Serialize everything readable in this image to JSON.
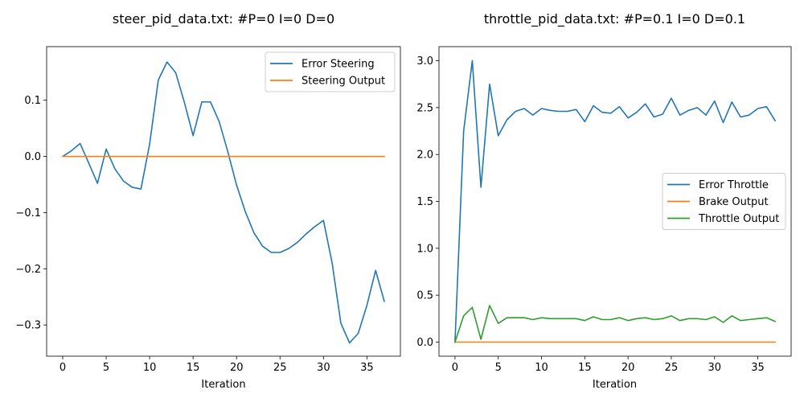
{
  "chart_data": [
    {
      "type": "line",
      "title": "steer_pid_data.txt: #P=0 I=0 D=0",
      "xlabel": "Iteration",
      "ylabel": "",
      "xlim": [
        -1.85,
        38.85
      ],
      "ylim": [
        -0.3556,
        0.1954
      ],
      "xticks": [
        0,
        5,
        10,
        15,
        20,
        25,
        30,
        35
      ],
      "yticks": [
        -0.3,
        -0.2,
        -0.1,
        0.0,
        0.1
      ],
      "ytick_labels": [
        "−0.3",
        "−0.2",
        "−0.1",
        "0.0",
        "0.1"
      ],
      "legend_position": "top-right",
      "series": [
        {
          "name": "Error Steering",
          "color": "#1f77b4",
          "x": [
            0,
            1,
            2,
            3,
            4,
            5,
            6,
            7,
            8,
            9,
            10,
            11,
            12,
            13,
            14,
            15,
            16,
            17,
            18,
            19,
            20,
            21,
            22,
            23,
            24,
            25,
            26,
            27,
            28,
            29,
            30,
            31,
            32,
            33,
            34,
            35,
            36,
            37
          ],
          "y": [
            0.0,
            0.01,
            0.023,
            -0.012,
            -0.048,
            0.013,
            -0.022,
            -0.044,
            -0.055,
            -0.058,
            0.022,
            0.136,
            0.168,
            0.149,
            0.096,
            0.037,
            0.097,
            0.097,
            0.062,
            0.008,
            -0.051,
            -0.098,
            -0.136,
            -0.16,
            -0.171,
            -0.171,
            -0.164,
            -0.153,
            -0.138,
            -0.125,
            -0.114,
            -0.19,
            -0.297,
            -0.332,
            -0.315,
            -0.265,
            -0.203,
            -0.258
          ]
        },
        {
          "name": "Steering Output",
          "color": "#ff7f0e",
          "x": [
            0,
            1,
            2,
            3,
            4,
            5,
            6,
            7,
            8,
            9,
            10,
            11,
            12,
            13,
            14,
            15,
            16,
            17,
            18,
            19,
            20,
            21,
            22,
            23,
            24,
            25,
            26,
            27,
            28,
            29,
            30,
            31,
            32,
            33,
            34,
            35,
            36,
            37
          ],
          "y": [
            0,
            0,
            0,
            0,
            0,
            0,
            0,
            0,
            0,
            0,
            0,
            0,
            0,
            0,
            0,
            0,
            0,
            0,
            0,
            0,
            0,
            0,
            0,
            0,
            0,
            0,
            0,
            0,
            0,
            0,
            0,
            0,
            0,
            0,
            0,
            0,
            0,
            0
          ]
        }
      ]
    },
    {
      "type": "line",
      "title": "throttle_pid_data.txt: #P=0.1 I=0 D=0.1",
      "xlabel": "Iteration",
      "ylabel": "",
      "xlim": [
        -1.85,
        38.85
      ],
      "ylim": [
        -0.15,
        3.15
      ],
      "xticks": [
        0,
        5,
        10,
        15,
        20,
        25,
        30,
        35
      ],
      "yticks": [
        0.0,
        0.5,
        1.0,
        1.5,
        2.0,
        2.5,
        3.0
      ],
      "ytick_labels": [
        "0.0",
        "0.5",
        "1.0",
        "1.5",
        "2.0",
        "2.5",
        "3.0"
      ],
      "legend_position": "center-right",
      "series": [
        {
          "name": "Error Throttle",
          "color": "#1f77b4",
          "x": [
            0,
            1,
            2,
            3,
            4,
            5,
            6,
            7,
            8,
            9,
            10,
            11,
            12,
            13,
            14,
            15,
            16,
            17,
            18,
            19,
            20,
            21,
            22,
            23,
            24,
            25,
            26,
            27,
            28,
            29,
            30,
            31,
            32,
            33,
            34,
            35,
            36,
            37
          ],
          "y": [
            0.0,
            2.25,
            3.0,
            1.65,
            2.75,
            2.2,
            2.37,
            2.46,
            2.49,
            2.42,
            2.49,
            2.47,
            2.46,
            2.46,
            2.48,
            2.35,
            2.52,
            2.45,
            2.44,
            2.51,
            2.39,
            2.45,
            2.54,
            2.4,
            2.43,
            2.6,
            2.42,
            2.47,
            2.5,
            2.42,
            2.57,
            2.34,
            2.56,
            2.4,
            2.42,
            2.49,
            2.51,
            2.36
          ]
        },
        {
          "name": "Brake Output",
          "color": "#ff7f0e",
          "x": [
            0,
            1,
            2,
            3,
            4,
            5,
            6,
            7,
            8,
            9,
            10,
            11,
            12,
            13,
            14,
            15,
            16,
            17,
            18,
            19,
            20,
            21,
            22,
            23,
            24,
            25,
            26,
            27,
            28,
            29,
            30,
            31,
            32,
            33,
            34,
            35,
            36,
            37
          ],
          "y": [
            0,
            0,
            0,
            0,
            0,
            0,
            0,
            0,
            0,
            0,
            0,
            0,
            0,
            0,
            0,
            0,
            0,
            0,
            0,
            0,
            0,
            0,
            0,
            0,
            0,
            0,
            0,
            0,
            0,
            0,
            0,
            0,
            0,
            0,
            0,
            0,
            0,
            0
          ]
        },
        {
          "name": "Throttle Output",
          "color": "#2ca02c",
          "x": [
            0,
            1,
            2,
            3,
            4,
            5,
            6,
            7,
            8,
            9,
            10,
            11,
            12,
            13,
            14,
            15,
            16,
            17,
            18,
            19,
            20,
            21,
            22,
            23,
            24,
            25,
            26,
            27,
            28,
            29,
            30,
            31,
            32,
            33,
            34,
            35,
            36,
            37
          ],
          "y": [
            0.0,
            0.28,
            0.37,
            0.03,
            0.39,
            0.2,
            0.26,
            0.26,
            0.26,
            0.24,
            0.26,
            0.25,
            0.25,
            0.25,
            0.25,
            0.23,
            0.27,
            0.24,
            0.24,
            0.26,
            0.23,
            0.25,
            0.26,
            0.24,
            0.25,
            0.28,
            0.23,
            0.25,
            0.25,
            0.24,
            0.27,
            0.21,
            0.28,
            0.23,
            0.24,
            0.25,
            0.26,
            0.22
          ]
        }
      ]
    }
  ]
}
